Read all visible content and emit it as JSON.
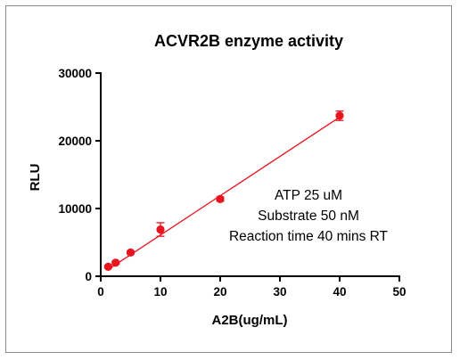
{
  "chart_data": {
    "type": "scatter",
    "title": "ACVR2B enzyme activity",
    "xlabel": "A2B(ug/mL)",
    "ylabel": "RLU",
    "xlim": [
      0,
      50
    ],
    "ylim": [
      0,
      30000
    ],
    "xticks": [
      "0",
      "10",
      "20",
      "30",
      "40",
      "50"
    ],
    "yticks": [
      "0",
      "10000",
      "20000",
      "30000"
    ],
    "grid": false,
    "points": [
      {
        "x": 1.25,
        "y": 1400,
        "err": 200
      },
      {
        "x": 2.5,
        "y": 2000,
        "err": 200
      },
      {
        "x": 5,
        "y": 3500,
        "err": 200
      },
      {
        "x": 10,
        "y": 6900,
        "err": 1000
      },
      {
        "x": 20,
        "y": 11400,
        "err": 300
      },
      {
        "x": 40,
        "y": 23700,
        "err": 700
      }
    ],
    "fit_line": {
      "x0": 1.25,
      "y0": 1000,
      "x1": 40,
      "y1": 23500
    },
    "marker_color": "#e8141e",
    "line_color": "#e8141e",
    "annotation": [
      "ATP 25 uM",
      "Substrate 50 nM",
      "Reaction time 40 mins RT"
    ]
  }
}
